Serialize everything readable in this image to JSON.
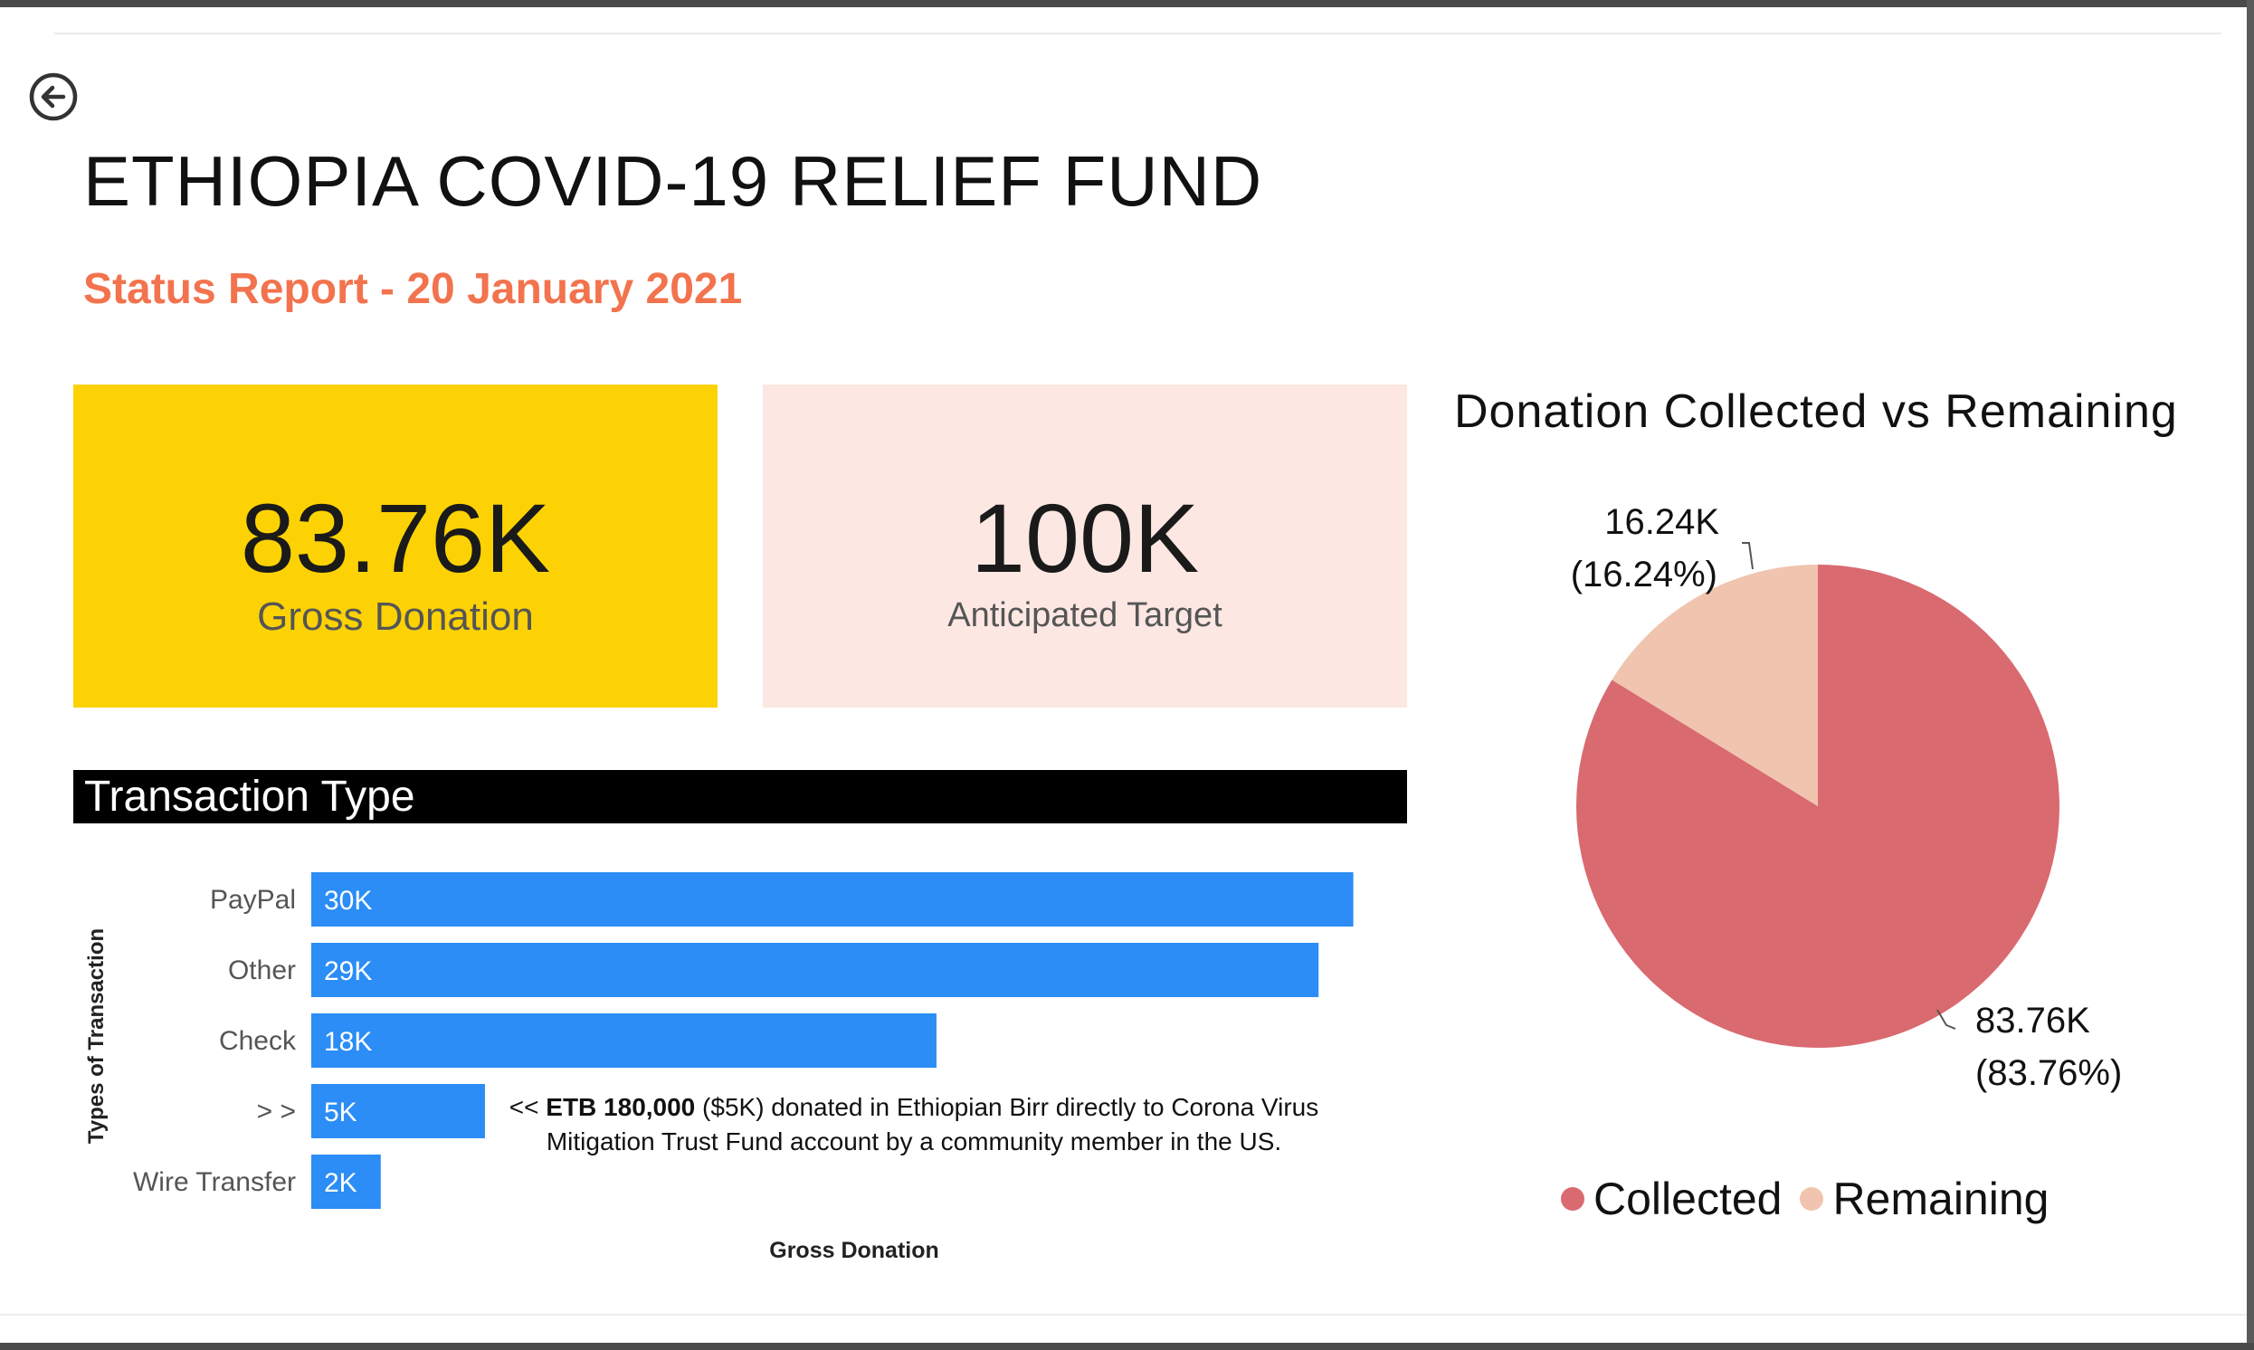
{
  "title": "ETHIOPIA COVID-19 RELIEF FUND",
  "subtitle": "Status Report - 20 January 2021",
  "kpis": {
    "gross": {
      "value": "83.76K",
      "label": "Gross Donation"
    },
    "target": {
      "value": "100K",
      "label": "Anticipated Target"
    }
  },
  "transaction_section": {
    "header": "Transaction Type"
  },
  "annotation": {
    "prefix": "<< ",
    "bold": "ETB 180,000",
    "rest": " ($5K) donated in Ethiopian Birr directly to Corona Virus Mitigation Trust Fund account by a community member in the US."
  },
  "colors": {
    "bar": "#2b8df5",
    "collected": "#d96a70",
    "remaining": "#f0c4ae",
    "accent": "#f2734d",
    "kpi_yellow": "#fcd204",
    "kpi_pink": "#fce7e2"
  },
  "chart_data": [
    {
      "type": "bar",
      "orientation": "horizontal",
      "categories": [
        "PayPal",
        "Other",
        "Check",
        "> >",
        "Wire Transfer"
      ],
      "values": [
        30,
        29,
        18,
        5,
        2
      ],
      "data_labels": [
        "30K",
        "29K",
        "18K",
        "5K",
        "2K"
      ],
      "xlabel": "Gross Donation",
      "ylabel": "Types of Transaction",
      "xlim": [
        0,
        31
      ]
    },
    {
      "type": "pie",
      "title": "Donation Collected vs Remaining",
      "categories": [
        "Collected",
        "Remaining"
      ],
      "values": [
        83.76,
        16.24
      ],
      "data_labels": [
        "83.76K",
        "16.24K"
      ],
      "percent_labels": [
        "(83.76%)",
        "(16.24%)"
      ],
      "legend_position": "bottom"
    }
  ]
}
